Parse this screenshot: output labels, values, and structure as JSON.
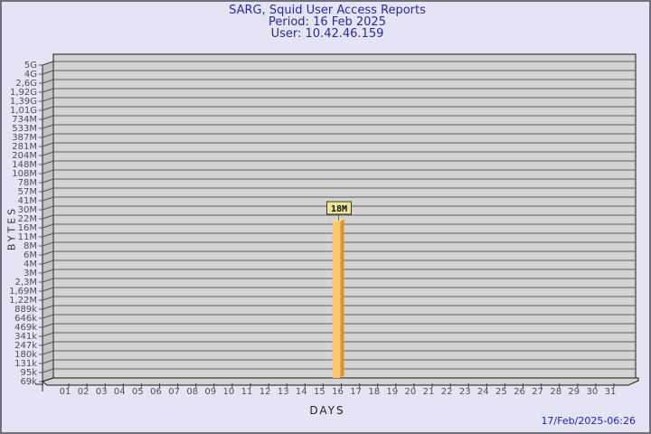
{
  "header": {
    "title": "SARG, Squid User Access Reports",
    "period": "Period: 16 Feb 2025",
    "user": "User: 10.42.46.159"
  },
  "footer": {
    "timestamp": "17/Feb/2025-06:26"
  },
  "chart_data": {
    "type": "bar",
    "title": "SARG, Squid User Access Reports",
    "subtitle_period": "Period: 16 Feb 2025",
    "subtitle_user": "User: 10.42.46.159",
    "xlabel": "DAYS",
    "ylabel": "BYTES",
    "grid": true,
    "legend": false,
    "scale": "sarg-log",
    "x_ticks": [
      "01",
      "02",
      "03",
      "04",
      "05",
      "06",
      "07",
      "08",
      "09",
      "10",
      "11",
      "12",
      "13",
      "14",
      "15",
      "16",
      "17",
      "18",
      "19",
      "20",
      "21",
      "22",
      "23",
      "24",
      "25",
      "26",
      "27",
      "28",
      "29",
      "30",
      "31"
    ],
    "y_ticks": [
      "5G",
      "4G",
      "2,6G",
      "1,92G",
      "1,39G",
      "1,01G",
      "734M",
      "533M",
      "387M",
      "281M",
      "204M",
      "148M",
      "108M",
      "78M",
      "57M",
      "41M",
      "30M",
      "22M",
      "16M",
      "11M",
      "8M",
      "6M",
      "4M",
      "3M",
      "2,3M",
      "1,69M",
      "1,22M",
      "889k",
      "646k",
      "469k",
      "341k",
      "247k",
      "180k",
      "131k",
      "95k",
      "69k"
    ],
    "ylim_labels": [
      "69k",
      "5G"
    ],
    "bars": [
      {
        "day": "16",
        "value_label": "18M",
        "value_bytes": 18000000
      }
    ],
    "colors": {
      "background": "#e4e4f5",
      "panel_bg": "#d3d3d3",
      "wall": "#c4c4c4",
      "gridline": "#5f5f5f",
      "panel_border": "#1a1a1a",
      "bar_face": "#fec66b",
      "bar_side": "#d2973b",
      "bar_top": "#fed88f",
      "label_box_bg": "#ece39c",
      "label_box_border": "#3c3c20",
      "title_color": "#2b2b9b",
      "timestamp_color": "#2222c8",
      "tick_text": "#4f4f4f"
    }
  }
}
